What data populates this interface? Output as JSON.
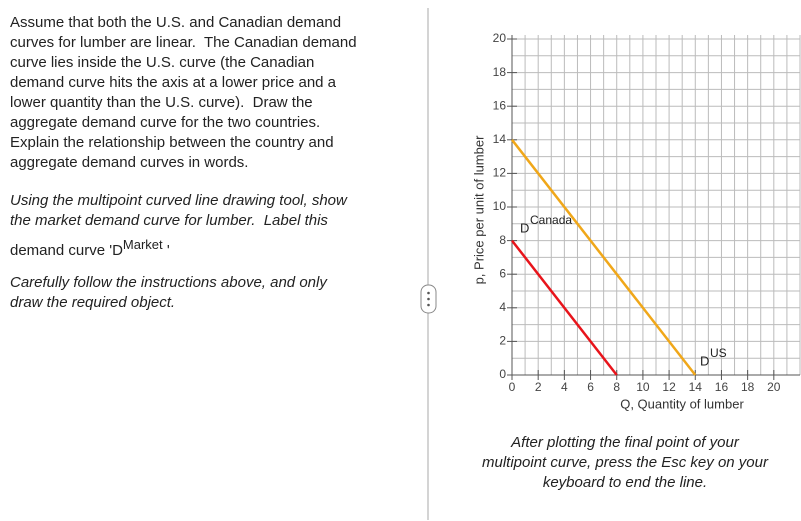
{
  "intro": {
    "lines": [
      "Assume that both the U.S. and Canadian demand",
      "curves for lumber are linear.  The Canadian demand",
      "curve lies inside the U.S. curve (the Canadian",
      "demand curve hits the axis at a lower price and a",
      "lower quantity than the U.S. curve).  Draw the",
      "aggregate demand curve for the two countries.",
      "Explain the relationship between the country and",
      "aggregate demand curves in words."
    ]
  },
  "instruction": {
    "lines": [
      "Using the multipoint curved line drawing tool, show",
      "the market demand curve for lumber.  Label this",
      "demand curve 'D"
    ],
    "label_sup": "Market",
    "label_end": "'"
  },
  "caution": {
    "lines": [
      "Carefully follow the instructions above, and only",
      "draw the required object."
    ]
  },
  "note": {
    "lines": [
      "After plotting the final point of your",
      "multipoint curve, press the Esc key on your",
      "keyboard to end the line."
    ]
  },
  "chart_data": {
    "type": "line",
    "xlabel": "Q, Quantity of lumber",
    "ylabel": "p, Price per unit of lumber",
    "xlim": [
      0,
      22
    ],
    "ylim": [
      0,
      20
    ],
    "xticks": [
      0,
      2,
      4,
      6,
      8,
      10,
      12,
      14,
      16,
      18,
      20
    ],
    "yticks": [
      0,
      2,
      4,
      6,
      8,
      10,
      12,
      14,
      16,
      18,
      20
    ],
    "grid": true,
    "grid_step": 1,
    "curve_label": "D",
    "series": [
      {
        "name": "Canada",
        "color": "#e8141b",
        "x": [
          0,
          8
        ],
        "values": [
          8,
          0
        ]
      },
      {
        "name": "US",
        "color": "#f0a719",
        "x": [
          0,
          14
        ],
        "values": [
          14,
          0
        ]
      }
    ]
  }
}
